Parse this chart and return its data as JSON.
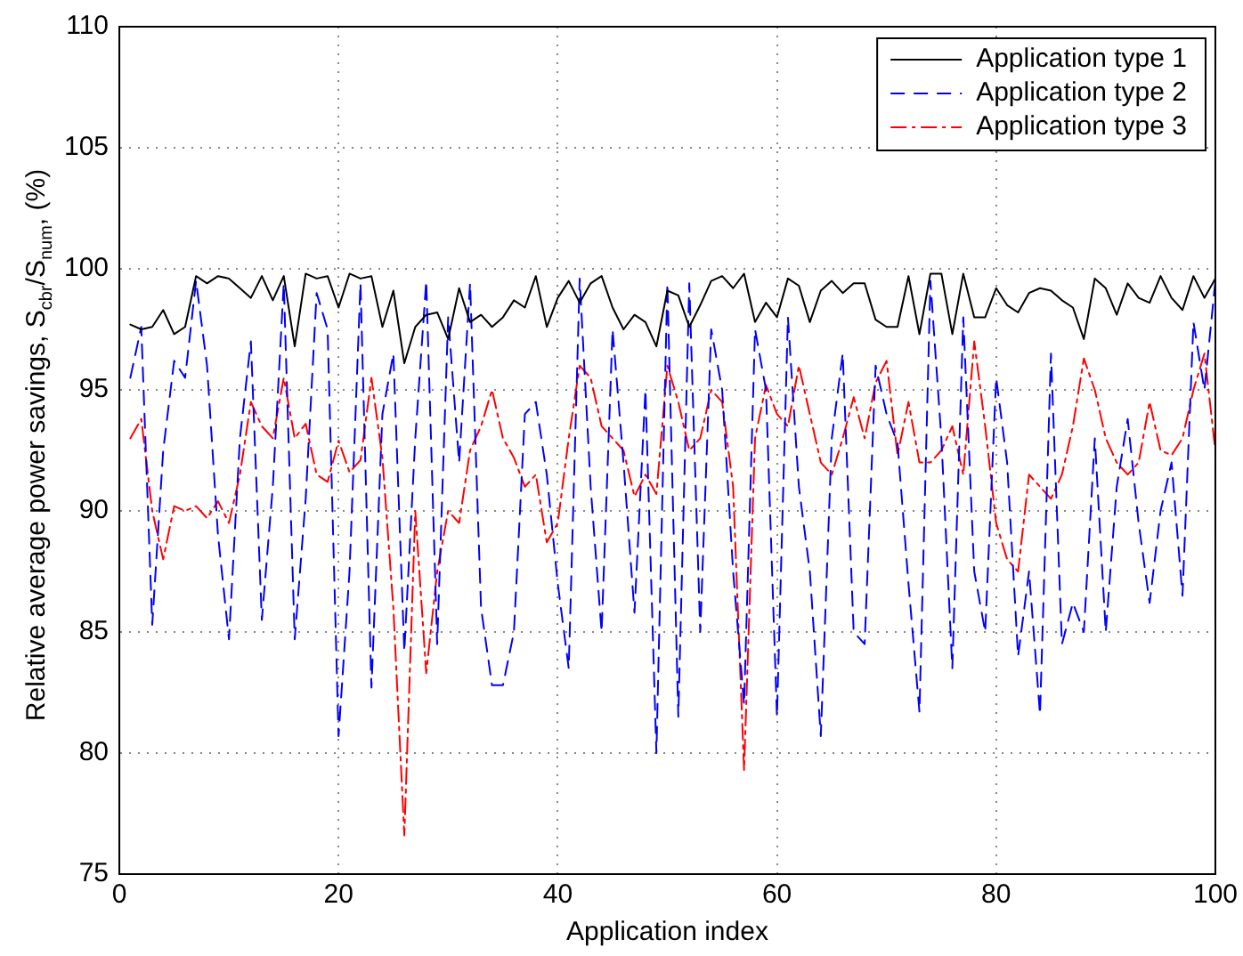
{
  "chart_data": {
    "type": "line",
    "xlabel": "Application index",
    "ylabel": "Relative average power savings, S$_{cbr}$/S$_{num}$, (%)",
    "x": [
      1,
      2,
      3,
      4,
      5,
      6,
      7,
      8,
      9,
      10,
      11,
      12,
      13,
      14,
      15,
      16,
      17,
      18,
      19,
      20,
      21,
      22,
      23,
      24,
      25,
      26,
      27,
      28,
      29,
      30,
      31,
      32,
      33,
      34,
      35,
      36,
      37,
      38,
      39,
      40,
      41,
      42,
      43,
      44,
      45,
      46,
      47,
      48,
      49,
      50,
      51,
      52,
      53,
      54,
      55,
      56,
      57,
      58,
      59,
      60,
      61,
      62,
      63,
      64,
      65,
      66,
      67,
      68,
      69,
      70,
      71,
      72,
      73,
      74,
      75,
      76,
      77,
      78,
      79,
      80,
      81,
      82,
      83,
      84,
      85,
      86,
      87,
      88,
      89,
      90,
      91,
      92,
      93,
      94,
      95,
      96,
      97,
      98,
      99,
      100
    ],
    "xlim": [
      0,
      100
    ],
    "xticks": [
      0,
      20,
      40,
      60,
      80,
      100
    ],
    "ylim": [
      75,
      110
    ],
    "yticks": [
      75,
      80,
      85,
      90,
      95,
      100,
      105,
      110
    ],
    "grid": true,
    "legend": "top right",
    "marker": "none",
    "series": [
      {
        "name": "Application type 1",
        "color": "#000000",
        "line_style": "solid",
        "values": [
          97.7,
          97.5,
          97.6,
          98.3,
          97.3,
          97.6,
          99.7,
          99.4,
          99.7,
          99.6,
          99.2,
          98.8,
          99.7,
          98.7,
          99.7,
          96.8,
          99.8,
          99.6,
          99.7,
          98.4,
          99.8,
          99.6,
          99.7,
          97.6,
          99.1,
          96.1,
          97.6,
          98.1,
          98.2,
          97.1,
          99.2,
          97.8,
          98.1,
          97.6,
          98.0,
          98.7,
          98.4,
          99.7,
          97.6,
          98.8,
          99.5,
          98.6,
          99.4,
          99.7,
          98.4,
          97.5,
          98.1,
          97.8,
          96.8,
          99.1,
          98.9,
          97.6,
          98.5,
          99.5,
          99.7,
          99.2,
          99.8,
          97.8,
          98.6,
          98.0,
          99.6,
          99.3,
          97.8,
          99.1,
          99.5,
          99.0,
          99.4,
          99.4,
          97.9,
          97.6,
          97.6,
          99.7,
          97.3,
          99.8,
          99.8,
          97.3,
          99.8,
          98.0,
          98.0,
          99.2,
          98.5,
          98.2,
          99.0,
          99.2,
          99.1,
          98.7,
          98.4,
          97.1,
          99.6,
          99.2,
          98.1,
          99.4,
          98.8,
          98.6,
          99.7,
          98.8,
          98.3,
          99.7,
          98.8,
          99.6
        ]
      },
      {
        "name": "Application type 2",
        "color": "#0000ff",
        "line_style": "dashed",
        "values": [
          95.5,
          97.6,
          85.3,
          92.5,
          96.2,
          95.5,
          99.5,
          96,
          89,
          84.7,
          93,
          97,
          85.5,
          91,
          99.4,
          84.7,
          90.5,
          99,
          97.5,
          80.7,
          87.5,
          99.4,
          82.7,
          94,
          96.5,
          84.2,
          93,
          99.5,
          84.5,
          98,
          92,
          99.4,
          86,
          82.8,
          82.8,
          85,
          94,
          94.5,
          91.5,
          87,
          83.5,
          99.6,
          91,
          85,
          97.5,
          92,
          85.8,
          95,
          80,
          99.4,
          81.5,
          99.4,
          85,
          97.5,
          95,
          87.5,
          82,
          97.5,
          95,
          81.5,
          98,
          91,
          87.5,
          80.7,
          93,
          96.5,
          85,
          84.5,
          96,
          94,
          92.8,
          87,
          81.7,
          99.5,
          93,
          83.5,
          98,
          87.5,
          85,
          95.5,
          92,
          84,
          87.5,
          81.6,
          96.5,
          84.5,
          86.2,
          85,
          93,
          85,
          91,
          93.8,
          89.5,
          86.2,
          90,
          92,
          86.5,
          97.8,
          95,
          99.5
        ]
      },
      {
        "name": "Application type 3",
        "color": "#ff0000",
        "line_style": "dashdot",
        "values": [
          93,
          93.8,
          90,
          88,
          90.2,
          90,
          90.2,
          89.7,
          90.4,
          89.5,
          91.5,
          94.5,
          93.5,
          93,
          95.5,
          93,
          93.6,
          91.5,
          91.2,
          92.9,
          91.6,
          92.1,
          95.5,
          92.2,
          86,
          76.6,
          90,
          83.3,
          87.5,
          90,
          89.5,
          92.5,
          93.5,
          95,
          93,
          92.2,
          91,
          91.5,
          88.7,
          89.5,
          93,
          96,
          95.5,
          93.5,
          93,
          92.5,
          90.6,
          91.5,
          90.7,
          96,
          94.5,
          92.5,
          93,
          95,
          94.5,
          91,
          79.3,
          93,
          95.2,
          94,
          93.5,
          96,
          94,
          92,
          91.5,
          93,
          94.7,
          93,
          95.3,
          96.2,
          92.3,
          94.5,
          92,
          92,
          92.5,
          93.5,
          91.5,
          97,
          93.5,
          89.5,
          88,
          87.5,
          91.5,
          91,
          90.5,
          91.5,
          93.5,
          96.3,
          95,
          93,
          92,
          91.5,
          92,
          94.5,
          92.5,
          92.3,
          93,
          95,
          96.5,
          92.5
        ]
      }
    ]
  }
}
